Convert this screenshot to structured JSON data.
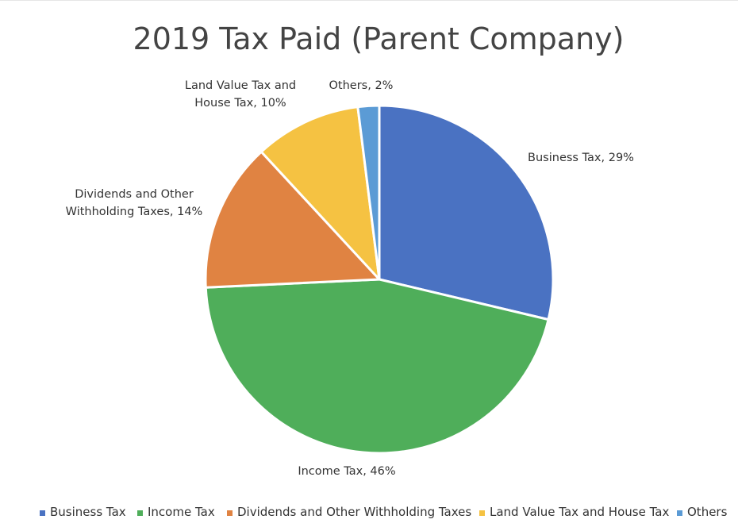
{
  "chart_data": {
    "type": "pie",
    "title": "2019 Tax Paid (Parent Company)",
    "categories": [
      "Business Tax",
      "Income Tax",
      "Dividends and Other Withholding Taxes",
      "Land Value Tax and House Tax",
      "Others"
    ],
    "values": [
      29,
      46,
      14,
      10,
      2
    ],
    "unit": "%",
    "colors": [
      "#4a72c2",
      "#4fae5a",
      "#e08342",
      "#f5c242",
      "#5b9bd5"
    ],
    "data_labels": [
      [
        "Business Tax, 29%"
      ],
      [
        "Income Tax, 46%"
      ],
      [
        "Dividends and Other",
        "Withholding Taxes, 14%"
      ],
      [
        "Land Value Tax and",
        "House Tax, 10%"
      ],
      [
        "Others, 2%"
      ]
    ],
    "legend": {
      "position": "bottom",
      "entries": [
        "Business Tax",
        "Income Tax",
        "Dividends and Other Withholding Taxes",
        "Land Value Tax and House Tax",
        "Others"
      ]
    }
  }
}
